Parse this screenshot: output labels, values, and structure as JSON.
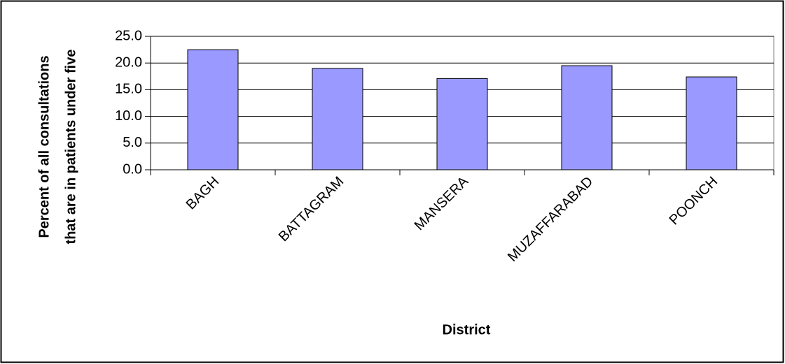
{
  "chart_data": {
    "type": "bar",
    "x_label": "District",
    "y_label": [
      "Percent of all consultations",
      "that are in patients under five"
    ],
    "categories": [
      "BAGH",
      "BATTAGRAM",
      "MANSERA",
      "MUZAFFARABAD",
      "POONCH"
    ],
    "values": [
      22.5,
      19.0,
      17.1,
      19.5,
      17.4
    ],
    "color": "#9999ff",
    "ylim": [
      0,
      25
    ],
    "yticks": [
      {
        "value": 0,
        "label": "0.0"
      },
      {
        "value": 5,
        "label": "5.0"
      },
      {
        "value": 10,
        "label": "10.0"
      },
      {
        "value": 15,
        "label": "15.0"
      },
      {
        "value": 20,
        "label": "20.0"
      },
      {
        "value": 25,
        "label": "25.0"
      }
    ],
    "grid": true
  }
}
